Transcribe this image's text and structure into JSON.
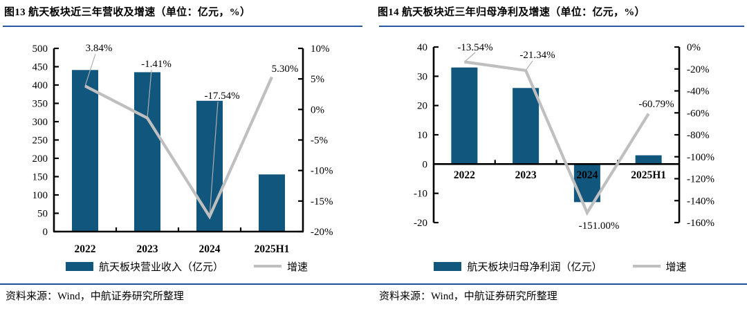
{
  "colors": {
    "bar": "#10567D",
    "line": "#BFBFBF",
    "leader": "#AFAFAF",
    "axis": "#000000",
    "title_rule": "#2A55A5",
    "source_rule": "#20519F"
  },
  "chart_data": [
    {
      "type": "bar+line",
      "title": "图13 航天板块近三年营收及增速（单位：亿元，%）",
      "categories": [
        "2022",
        "2023",
        "2024",
        "2025H1"
      ],
      "series": [
        {
          "name": "航天板块营业收入（亿元）",
          "type": "bar",
          "axis": "left",
          "values": [
            441,
            435,
            357,
            156
          ]
        },
        {
          "name": "增速",
          "type": "line",
          "axis": "right",
          "values": [
            3.84,
            -1.41,
            -17.54,
            5.3
          ],
          "point_labels": [
            "3.84%",
            "-1.41%",
            "-17.54%",
            "5.30%"
          ]
        }
      ],
      "left_axis": {
        "min": 0,
        "max": 500,
        "step": 50,
        "ticks": [
          "500",
          "450",
          "400",
          "350",
          "300",
          "250",
          "200",
          "150",
          "100",
          "50",
          "0"
        ]
      },
      "right_axis": {
        "min": -20,
        "max": 10,
        "step": 5,
        "ticks": [
          "10%",
          "5%",
          "0%",
          "-5%",
          "-10%",
          "-15%",
          "-20%"
        ]
      },
      "grid": false,
      "legend_position": "bottom",
      "source": "资料来源：Wind，中航证券研究所整理"
    },
    {
      "type": "bar+line",
      "title": "图14 航天板块近三年归母净利及增速（单位：亿元，%）",
      "categories": [
        "2022",
        "2023",
        "2024",
        "2025H1"
      ],
      "series": [
        {
          "name": "航天板块归母净利润（亿元）",
          "type": "bar",
          "axis": "left",
          "values": [
            33,
            26,
            -13,
            3
          ]
        },
        {
          "name": "增速",
          "type": "line",
          "axis": "right",
          "values": [
            -13.54,
            -21.34,
            -151.0,
            -60.79
          ],
          "point_labels": [
            "-13.54%",
            "-21.34%",
            "-151.00%",
            "-60.79%"
          ]
        }
      ],
      "left_axis": {
        "min": -20,
        "max": 40,
        "step": 10,
        "ticks": [
          "40",
          "30",
          "20",
          "10",
          "0",
          "-10",
          "-20"
        ]
      },
      "right_axis": {
        "min": -160,
        "max": 0,
        "step": 20,
        "ticks": [
          "0%",
          "-20%",
          "-40%",
          "-60%",
          "-80%",
          "-100%",
          "-120%",
          "-140%",
          "-160%"
        ]
      },
      "grid": false,
      "legend_position": "bottom",
      "source": "资料来源：Wind，中航证券研究所整理"
    }
  ]
}
